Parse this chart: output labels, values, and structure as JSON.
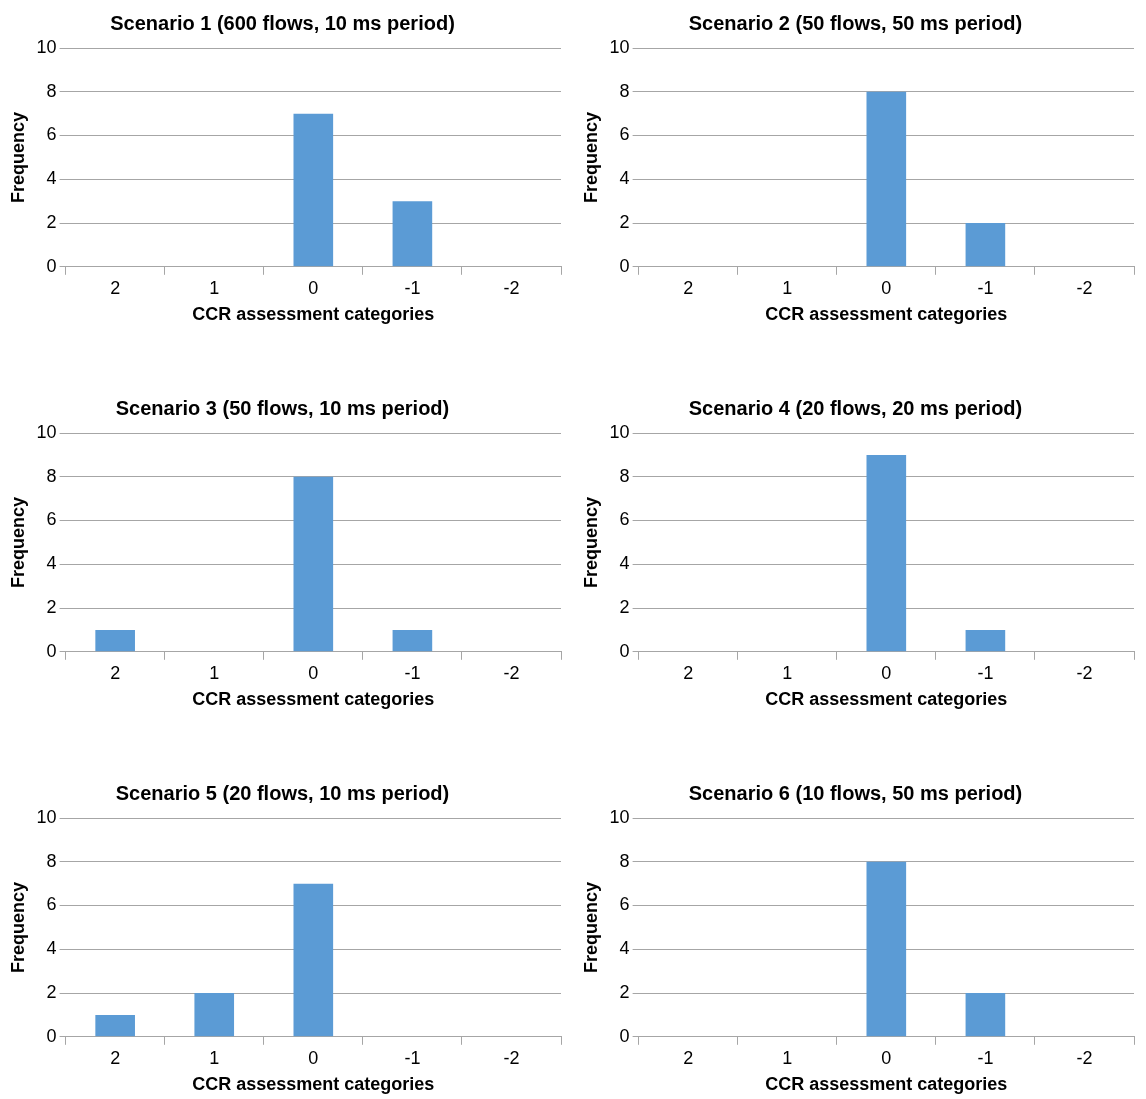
{
  "chart_data": [
    {
      "type": "bar",
      "title": "Scenario 1 (600 flows, 10 ms period)",
      "xlabel": "CCR assessment categories",
      "ylabel": "Frequency",
      "categories": [
        "2",
        "1",
        "0",
        "-1",
        "-2"
      ],
      "values": [
        0,
        0,
        7,
        3,
        0
      ],
      "color": "#5b9bd5",
      "ylim": [
        0,
        10
      ],
      "yticks": [
        0,
        2,
        4,
        6,
        8,
        10
      ],
      "grid": "y"
    },
    {
      "type": "bar",
      "title": "Scenario 2 (50 flows, 50 ms period)",
      "xlabel": "CCR assessment categories",
      "ylabel": "Frequency",
      "categories": [
        "2",
        "1",
        "0",
        "-1",
        "-2"
      ],
      "values": [
        0,
        0,
        8,
        2,
        0
      ],
      "color": "#5b9bd5",
      "ylim": [
        0,
        10
      ],
      "yticks": [
        0,
        2,
        4,
        6,
        8,
        10
      ],
      "grid": "y"
    },
    {
      "type": "bar",
      "title": "Scenario 3 (50 flows, 10 ms period)",
      "xlabel": "CCR assessment categories",
      "ylabel": "Frequency",
      "categories": [
        "2",
        "1",
        "0",
        "-1",
        "-2"
      ],
      "values": [
        1,
        0,
        8,
        1,
        0
      ],
      "color": "#5b9bd5",
      "ylim": [
        0,
        10
      ],
      "yticks": [
        0,
        2,
        4,
        6,
        8,
        10
      ],
      "grid": "y"
    },
    {
      "type": "bar",
      "title": "Scenario 4 (20 flows, 20 ms period)",
      "xlabel": "CCR assessment categories",
      "ylabel": "Frequency",
      "categories": [
        "2",
        "1",
        "0",
        "-1",
        "-2"
      ],
      "values": [
        0,
        0,
        9,
        1,
        0
      ],
      "color": "#5b9bd5",
      "ylim": [
        0,
        10
      ],
      "yticks": [
        0,
        2,
        4,
        6,
        8,
        10
      ],
      "grid": "y"
    },
    {
      "type": "bar",
      "title": "Scenario 5 (20 flows, 10 ms period)",
      "xlabel": "CCR assessment categories",
      "ylabel": "Frequency",
      "categories": [
        "2",
        "1",
        "0",
        "-1",
        "-2"
      ],
      "values": [
        1,
        2,
        7,
        0,
        0
      ],
      "color": "#5b9bd5",
      "ylim": [
        0,
        10
      ],
      "yticks": [
        0,
        2,
        4,
        6,
        8,
        10
      ],
      "grid": "y"
    },
    {
      "type": "bar",
      "title": "Scenario 6 (10 flows, 50 ms period)",
      "xlabel": "CCR assessment categories",
      "ylabel": "Frequency",
      "categories": [
        "2",
        "1",
        "0",
        "-1",
        "-2"
      ],
      "values": [
        0,
        0,
        8,
        2,
        0
      ],
      "color": "#5b9bd5",
      "ylim": [
        0,
        10
      ],
      "yticks": [
        0,
        2,
        4,
        6,
        8,
        10
      ],
      "grid": "y"
    }
  ]
}
